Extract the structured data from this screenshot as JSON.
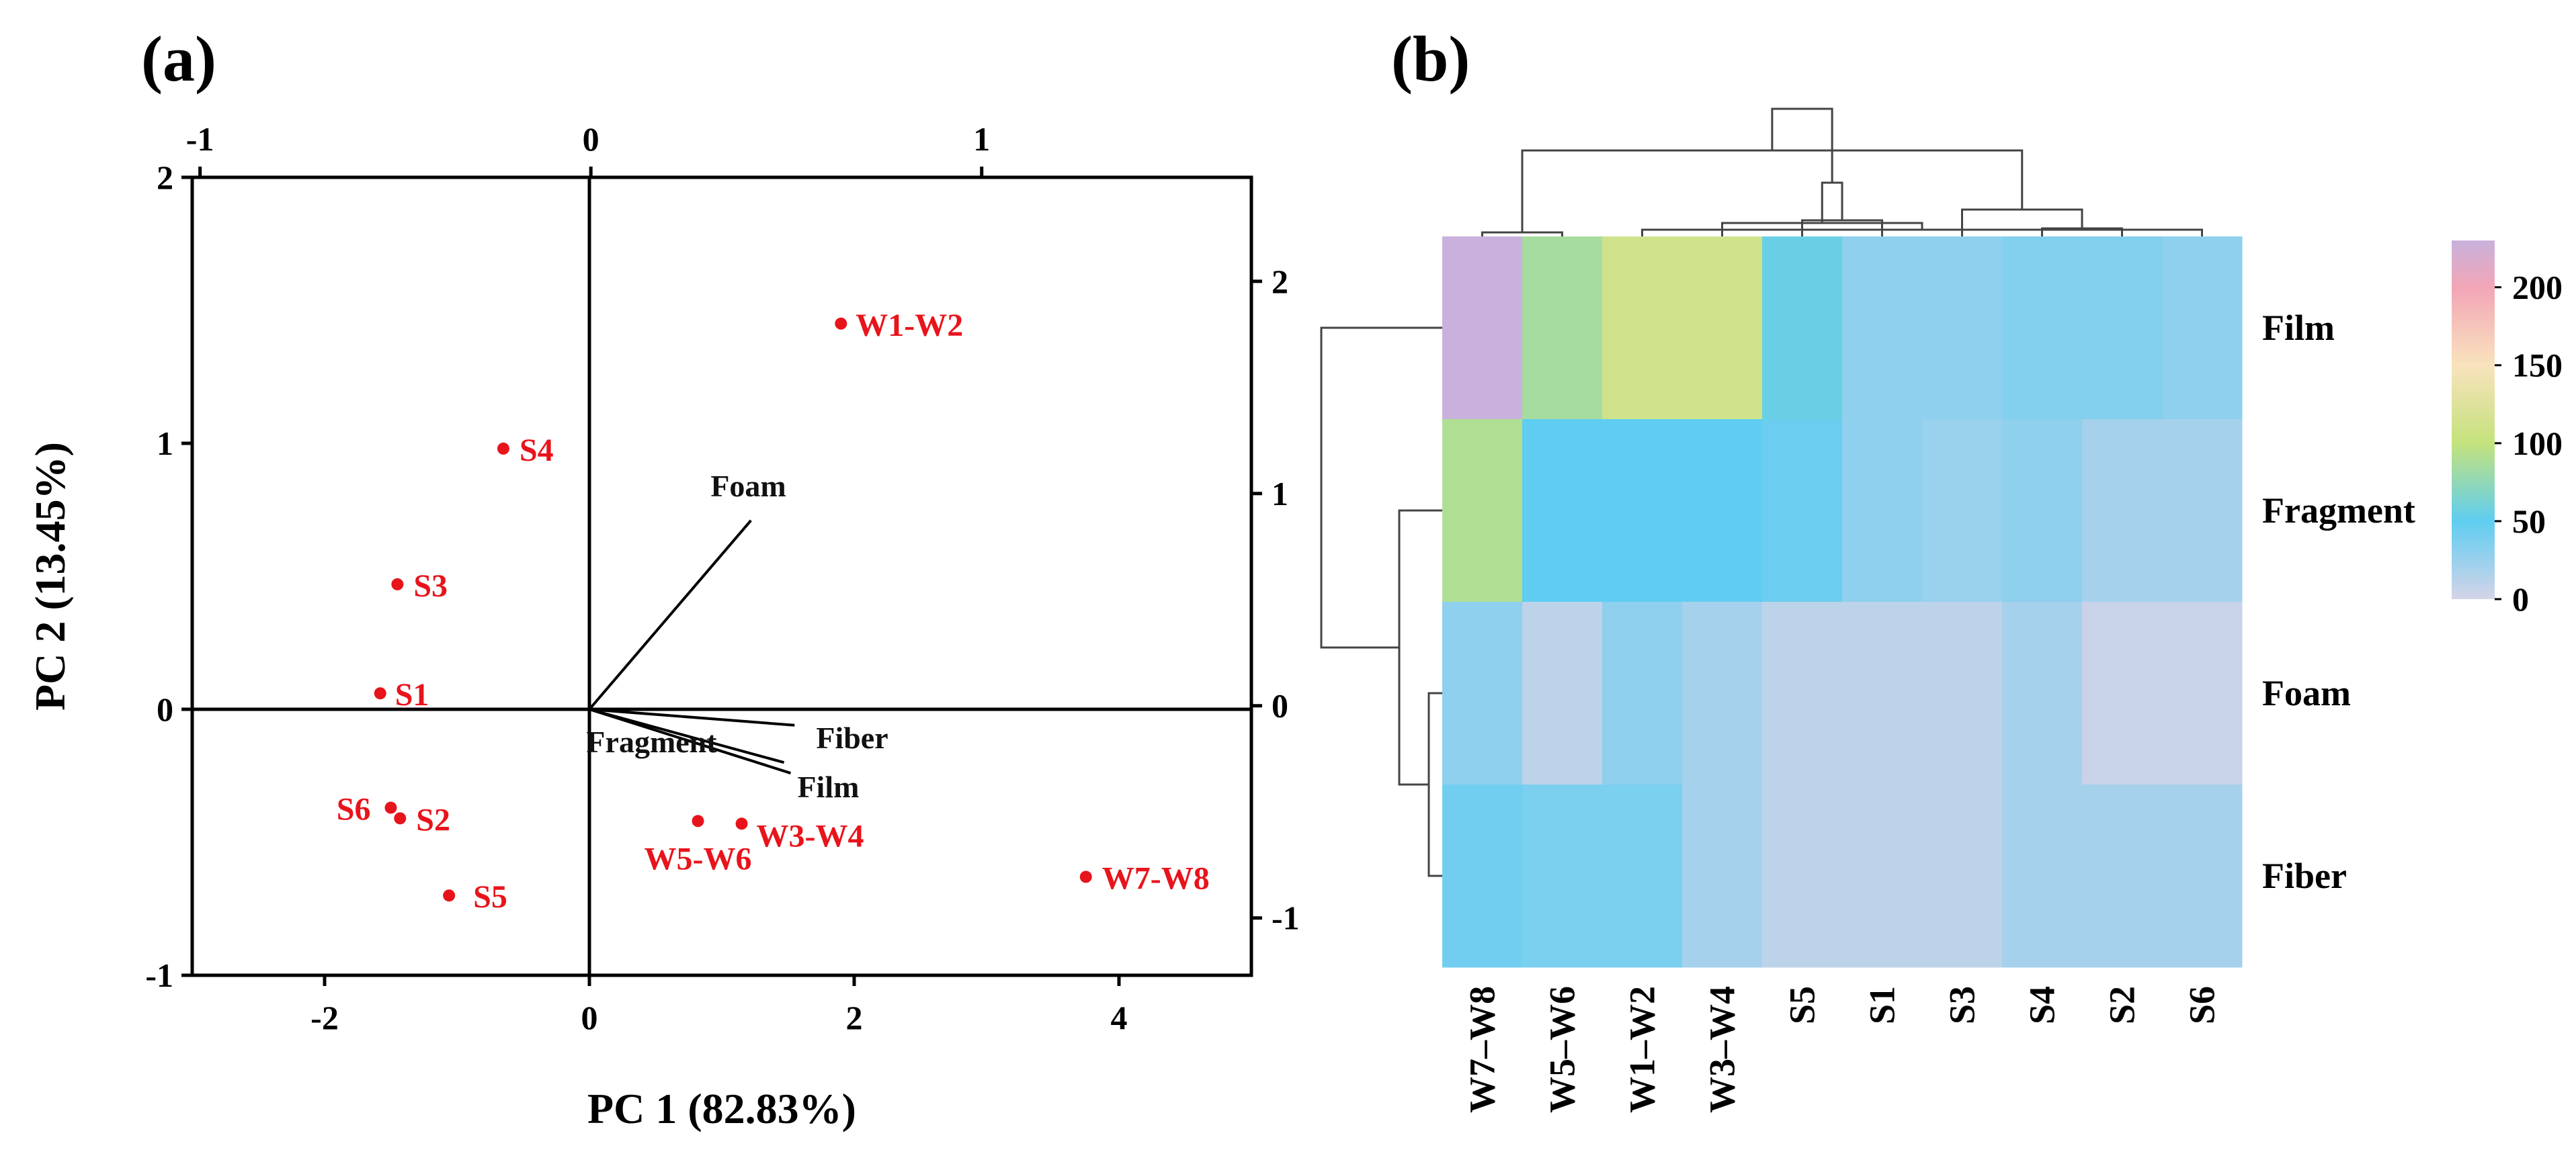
{
  "chart_data": [
    {
      "type": "scatter",
      "subtype": "pca-biplot",
      "panel_label": "(a)",
      "xlabel": "PC 1 (82.83%)",
      "ylabel": "PC 2 (13.45%)",
      "xlim": [
        -3,
        5
      ],
      "ylim": [
        -1,
        2
      ],
      "x_ticks": [
        "-2",
        "0",
        "2",
        "4"
      ],
      "y_ticks": [
        "-1",
        "0",
        "1",
        "2"
      ],
      "top_axis": {
        "lim": [
          -1.02,
          1.69
        ],
        "ticks": [
          "-1",
          "0",
          "1"
        ]
      },
      "right_axis": {
        "lim": [
          -1.27,
          2.49
        ],
        "ticks": [
          "-1",
          "0",
          "1",
          "2"
        ]
      },
      "point_color": "#e8141b",
      "vector_color": "#000000",
      "points": [
        {
          "label": "W1-W2",
          "x": 1.9,
          "y": 1.45
        },
        {
          "label": "S4",
          "x": -0.65,
          "y": 0.98
        },
        {
          "label": "S3",
          "x": -1.45,
          "y": 0.47
        },
        {
          "label": "S1",
          "x": -1.58,
          "y": 0.06
        },
        {
          "label": "S6",
          "x": -1.5,
          "y": -0.37
        },
        {
          "label": "S2",
          "x": -1.43,
          "y": -0.41
        },
        {
          "label": "S5",
          "x": -1.06,
          "y": -0.7
        },
        {
          "label": "W5-W6",
          "x": 0.82,
          "y": -0.42
        },
        {
          "label": "W3-W4",
          "x": 1.15,
          "y": -0.43
        },
        {
          "label": "W7-W8",
          "x": 3.75,
          "y": -0.63
        }
      ],
      "loadings": [
        {
          "label": "Foam",
          "x": 1.22,
          "y": 0.71
        },
        {
          "label": "Fiber",
          "x": 1.55,
          "y": -0.06
        },
        {
          "label": "Film",
          "x": 1.52,
          "y": -0.24
        },
        {
          "label": "Fragment",
          "x": 1.47,
          "y": -0.2
        }
      ]
    },
    {
      "type": "heatmap",
      "panel_label": "(b)",
      "rows": [
        "Film",
        "Fragment",
        "Foam",
        "Fiber"
      ],
      "columns": [
        "W7–W8",
        "W5–W6",
        "W1–W2",
        "W3–W4",
        "S5",
        "S1",
        "S3",
        "S4",
        "S2",
        "S6"
      ],
      "values": [
        [
          230,
          85,
          112,
          112,
          55,
          30,
          30,
          35,
          35,
          30
        ],
        [
          90,
          50,
          50,
          50,
          45,
          30,
          25,
          30,
          20,
          20
        ],
        [
          30,
          10,
          30,
          20,
          10,
          10,
          10,
          20,
          5,
          5
        ],
        [
          42,
          38,
          38,
          20,
          10,
          10,
          10,
          20,
          20,
          20
        ]
      ],
      "colorbar": {
        "min": 0,
        "max": 230,
        "ticks": [
          "0",
          "50",
          "100",
          "150",
          "200"
        ],
        "stops": [
          {
            "v": 0,
            "color": "#d4d4e8"
          },
          {
            "v": 50,
            "color": "#5fcdf1"
          },
          {
            "v": 100,
            "color": "#c4e27c"
          },
          {
            "v": 150,
            "color": "#f9e3bd"
          },
          {
            "v": 200,
            "color": "#f2a5b6"
          },
          {
            "v": 230,
            "color": "#c9b1dc"
          }
        ]
      },
      "col_dendrogram": [
        [
          1,
          2
        ],
        [
          3,
          10
        ],
        [
          8,
          9
        ],
        [
          12,
          4
        ],
        [
          5,
          6
        ],
        [
          7,
          13
        ],
        [
          14,
          15
        ],
        [
          16,
          11
        ],
        [
          17,
          18
        ]
      ],
      "row_dendrogram": [
        [
          3,
          4
        ],
        [
          2,
          5
        ],
        [
          1,
          6
        ]
      ]
    }
  ]
}
